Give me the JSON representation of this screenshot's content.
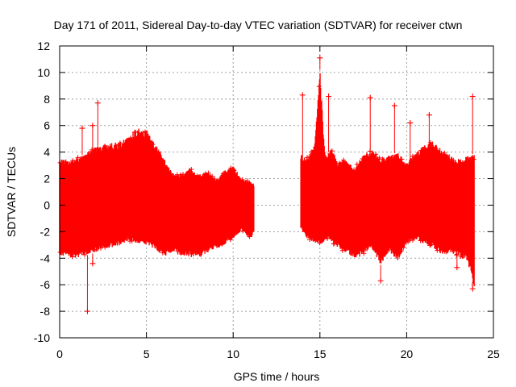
{
  "chart_data": {
    "type": "scatter",
    "title": "Day 171 of 2011, Sidereal Day-to-day VTEC variation (SDTVAR) for receiver ctwn",
    "xlabel": "GPS time / hours",
    "ylabel": "SDTVAR / TECUs",
    "xlim": [
      0,
      25
    ],
    "ylim": [
      -10,
      12
    ],
    "xticks": [
      0,
      5,
      10,
      15,
      20,
      25
    ],
    "yticks": [
      -10,
      -8,
      -6,
      -4,
      -2,
      0,
      2,
      4,
      6,
      8,
      10,
      12
    ],
    "grid": true,
    "marker": "+",
    "series_color": "#ff0000",
    "segments": [
      {
        "name": "segment-1",
        "x_range": [
          0.0,
          11.2
        ],
        "upper_envelope": [
          [
            0.0,
            3.6
          ],
          [
            0.6,
            3.3
          ],
          [
            1.0,
            3.6
          ],
          [
            1.5,
            3.9
          ],
          [
            2.0,
            4.4
          ],
          [
            2.5,
            4.6
          ],
          [
            3.0,
            4.7
          ],
          [
            3.5,
            4.8
          ],
          [
            4.0,
            5.3
          ],
          [
            4.5,
            5.8
          ],
          [
            5.0,
            5.7
          ],
          [
            5.5,
            4.6
          ],
          [
            6.0,
            3.6
          ],
          [
            6.5,
            2.4
          ],
          [
            7.0,
            2.3
          ],
          [
            7.5,
            2.8
          ],
          [
            8.0,
            2.3
          ],
          [
            8.5,
            2.6
          ],
          [
            9.0,
            1.9
          ],
          [
            9.5,
            2.6
          ],
          [
            10.0,
            3.0
          ],
          [
            10.5,
            2.0
          ],
          [
            11.0,
            1.8
          ],
          [
            11.2,
            1.6
          ]
        ],
        "lower_envelope": [
          [
            0.0,
            -3.8
          ],
          [
            0.5,
            -3.9
          ],
          [
            1.0,
            -4.0
          ],
          [
            1.5,
            -3.8
          ],
          [
            2.0,
            -3.6
          ],
          [
            2.5,
            -3.3
          ],
          [
            3.0,
            -3.2
          ],
          [
            3.5,
            -3.0
          ],
          [
            4.0,
            -2.7
          ],
          [
            4.5,
            -2.9
          ],
          [
            5.0,
            -3.0
          ],
          [
            5.5,
            -3.3
          ],
          [
            6.0,
            -3.9
          ],
          [
            6.5,
            -3.6
          ],
          [
            7.0,
            -3.8
          ],
          [
            7.5,
            -3.9
          ],
          [
            8.0,
            -4.0
          ],
          [
            8.5,
            -3.6
          ],
          [
            9.0,
            -3.3
          ],
          [
            9.5,
            -3.0
          ],
          [
            10.0,
            -2.5
          ],
          [
            10.5,
            -1.9
          ],
          [
            11.0,
            -2.6
          ],
          [
            11.2,
            -2.0
          ]
        ],
        "outliers": [
          [
            1.6,
            -8.0
          ],
          [
            2.2,
            7.7
          ],
          [
            1.9,
            6.0
          ],
          [
            1.3,
            5.8
          ],
          [
            1.9,
            -4.4
          ]
        ]
      },
      {
        "name": "segment-2",
        "x_range": [
          13.9,
          23.9
        ],
        "upper_envelope": [
          [
            13.9,
            3.8
          ],
          [
            14.3,
            3.6
          ],
          [
            14.7,
            4.6
          ],
          [
            15.0,
            10.2
          ],
          [
            15.3,
            3.6
          ],
          [
            15.7,
            4.4
          ],
          [
            16.0,
            3.2
          ],
          [
            16.5,
            3.5
          ],
          [
            17.0,
            2.8
          ],
          [
            17.5,
            3.8
          ],
          [
            18.0,
            4.2
          ],
          [
            18.5,
            3.5
          ],
          [
            19.0,
            3.8
          ],
          [
            19.5,
            4.0
          ],
          [
            20.0,
            3.2
          ],
          [
            20.5,
            4.0
          ],
          [
            21.0,
            4.5
          ],
          [
            21.5,
            4.8
          ],
          [
            22.0,
            4.3
          ],
          [
            22.5,
            3.8
          ],
          [
            23.0,
            3.5
          ],
          [
            23.5,
            3.7
          ],
          [
            23.9,
            3.9
          ]
        ],
        "lower_envelope": [
          [
            13.9,
            -1.8
          ],
          [
            14.3,
            -2.6
          ],
          [
            14.7,
            -2.8
          ],
          [
            15.0,
            -3.0
          ],
          [
            15.5,
            -2.6
          ],
          [
            16.0,
            -3.2
          ],
          [
            16.5,
            -3.6
          ],
          [
            17.0,
            -4.0
          ],
          [
            17.5,
            -3.8
          ],
          [
            18.0,
            -3.2
          ],
          [
            18.5,
            -4.5
          ],
          [
            19.0,
            -3.5
          ],
          [
            19.5,
            -4.2
          ],
          [
            20.0,
            -2.8
          ],
          [
            20.5,
            -2.6
          ],
          [
            21.0,
            -2.8
          ],
          [
            21.5,
            -3.2
          ],
          [
            22.0,
            -3.8
          ],
          [
            22.5,
            -3.6
          ],
          [
            23.0,
            -3.9
          ],
          [
            23.5,
            -4.2
          ],
          [
            23.9,
            -6.3
          ]
        ],
        "outliers": [
          [
            15.0,
            11.1
          ],
          [
            14.0,
            8.3
          ],
          [
            15.5,
            8.2
          ],
          [
            17.9,
            8.1
          ],
          [
            19.3,
            7.5
          ],
          [
            23.8,
            8.2
          ],
          [
            18.5,
            -5.7
          ],
          [
            23.8,
            -6.3
          ],
          [
            22.9,
            -4.7
          ],
          [
            20.2,
            6.2
          ],
          [
            21.3,
            6.8
          ]
        ]
      }
    ]
  }
}
